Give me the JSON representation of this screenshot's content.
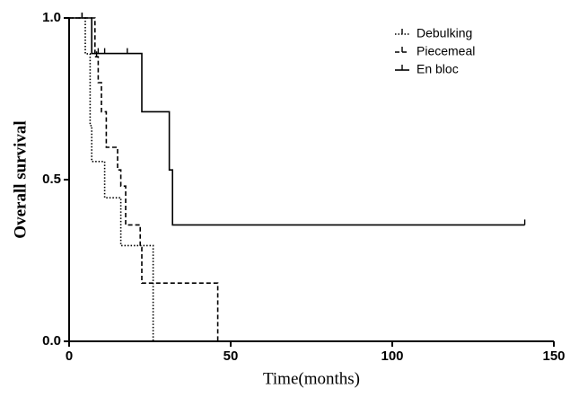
{
  "chart_data": {
    "type": "step",
    "xlabel": "Time(months)",
    "ylabel": "Overall survival",
    "xlim": [
      0,
      150
    ],
    "ylim": [
      0,
      1
    ],
    "xticks": [
      0,
      50,
      100,
      150
    ],
    "yticks": [
      {
        "value": 0,
        "label": "0.0"
      },
      0.5,
      {
        "value": 1,
        "label": "1.0"
      }
    ],
    "legend": "upper right",
    "series": [
      {
        "name": "Debulking",
        "color": "#000000",
        "dash": "dotted",
        "x": [
          0,
          5,
          6.5,
          7,
          11,
          16,
          26
        ],
        "values": [
          1,
          0.889,
          0.667,
          0.556,
          0.444,
          0.296,
          0
        ],
        "censor_x": [
          4
        ]
      },
      {
        "name": "Piecemeal",
        "color": "#000000",
        "dash": "dashed",
        "x": [
          0,
          8,
          9,
          10,
          11.5,
          15,
          16,
          17.5,
          22,
          22.5,
          46
        ],
        "values": [
          1,
          0.88,
          0.8,
          0.71,
          0.6,
          0.53,
          0.48,
          0.36,
          0.29,
          0.18,
          0
        ],
        "censor_x": [
          8.5
        ]
      },
      {
        "name": "En bloc",
        "color": "#000000",
        "dash": "solid",
        "x": [
          0,
          7,
          22.5,
          31,
          32,
          141
        ],
        "values": [
          1,
          0.89,
          0.71,
          0.53,
          0.36,
          0.36
        ],
        "censor_x": [
          4,
          9,
          11,
          18,
          141
        ]
      }
    ]
  }
}
